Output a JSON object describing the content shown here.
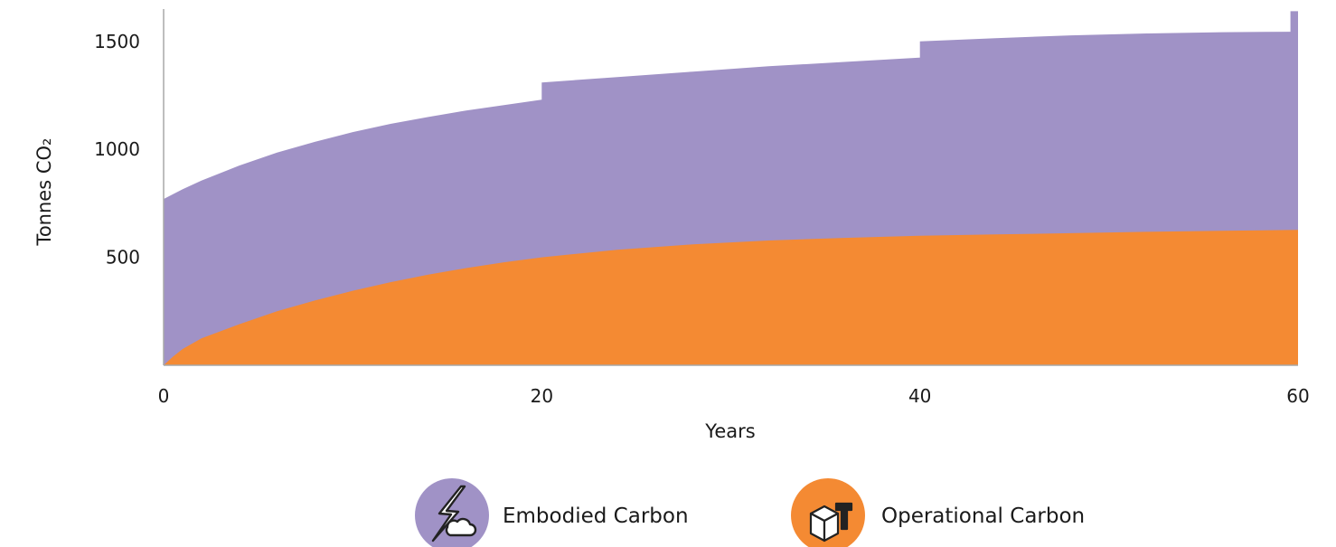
{
  "chart_data": {
    "type": "area",
    "stacked": true,
    "xlabel": "Years",
    "ylabel": "Tonnes CO₂",
    "xlim": [
      0,
      60
    ],
    "ylim": [
      0,
      1650
    ],
    "xticks": [
      "0",
      "20",
      "40",
      "60"
    ],
    "yticks": [
      "500",
      "1000",
      "1500"
    ],
    "grid": false,
    "legend_position": "bottom",
    "series": [
      {
        "name": "Operational Carbon",
        "color": "#f48a33",
        "icon": "building-tools-icon",
        "points": [
          [
            0,
            0
          ],
          [
            0.5,
            40
          ],
          [
            1,
            75
          ],
          [
            2,
            125
          ],
          [
            4,
            190
          ],
          [
            6,
            250
          ],
          [
            8,
            300
          ],
          [
            10,
            345
          ],
          [
            12,
            385
          ],
          [
            14,
            420
          ],
          [
            16,
            450
          ],
          [
            18,
            477
          ],
          [
            20,
            500
          ],
          [
            24,
            535
          ],
          [
            28,
            560
          ],
          [
            32,
            578
          ],
          [
            36,
            590
          ],
          [
            40,
            600
          ],
          [
            44,
            606
          ],
          [
            48,
            612
          ],
          [
            52,
            618
          ],
          [
            56,
            623
          ],
          [
            60,
            627
          ]
        ]
      },
      {
        "name": "Embodied Carbon",
        "color": "#a092c6",
        "icon": "lightning-co2-cloud-icon",
        "points": [
          [
            0,
            770
          ],
          [
            1,
            815
          ],
          [
            2,
            855
          ],
          [
            4,
            925
          ],
          [
            6,
            985
          ],
          [
            8,
            1035
          ],
          [
            10,
            1080
          ],
          [
            12,
            1118
          ],
          [
            14,
            1150
          ],
          [
            16,
            1180
          ],
          [
            18,
            1205
          ],
          [
            20,
            1230
          ],
          [
            20,
            1310
          ],
          [
            24,
            1335
          ],
          [
            28,
            1360
          ],
          [
            32,
            1385
          ],
          [
            36,
            1405
          ],
          [
            40,
            1425
          ],
          [
            40,
            1500
          ],
          [
            44,
            1515
          ],
          [
            48,
            1528
          ],
          [
            52,
            1537
          ],
          [
            56,
            1543
          ],
          [
            59.6,
            1545
          ],
          [
            59.6,
            1640
          ],
          [
            60,
            1640
          ]
        ]
      }
    ]
  }
}
